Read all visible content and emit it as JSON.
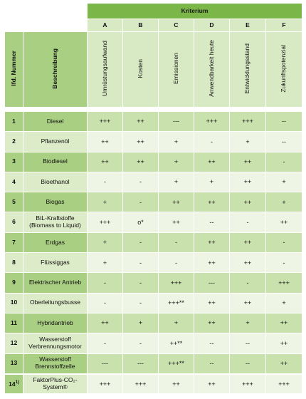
{
  "header": {
    "group_label": "Kriterium",
    "columns": [
      {
        "letter": "A",
        "label": "Umrüstungsaufwand"
      },
      {
        "letter": "B",
        "label": "Kosten"
      },
      {
        "letter": "C",
        "label": "Emissionen"
      },
      {
        "letter": "D",
        "label": "Anwendbarkeit heute"
      },
      {
        "letter": "E",
        "label": "Entwicklungsstand"
      },
      {
        "letter": "F",
        "label": "Zukunftspotenzial"
      }
    ],
    "num_label": "lfd. Nummer",
    "desc_label": "Beschreibung"
  },
  "rows": [
    {
      "num": "1",
      "desc": "Diesel",
      "values": [
        "+++",
        "++",
        "---",
        "+++",
        "+++",
        "--"
      ]
    },
    {
      "num": "2",
      "desc": "Pflanzenöl",
      "values": [
        "++",
        "++",
        "+",
        "-",
        "+",
        "--"
      ]
    },
    {
      "num": "3",
      "desc": "Biodiesel",
      "values": [
        "++",
        "++",
        "+",
        "++",
        "++",
        "-"
      ]
    },
    {
      "num": "4",
      "desc": "Bioethanol",
      "values": [
        "-",
        "-",
        "+",
        "+",
        "++",
        "+"
      ]
    },
    {
      "num": "5",
      "desc": "Biogas",
      "values": [
        "+",
        "-",
        "++",
        "++",
        "++",
        "+"
      ]
    },
    {
      "num": "6",
      "desc": "BtL-Kraftstoffe\n(Biomass to Liquid)",
      "values": [
        "+++",
        "o*",
        "++",
        "--",
        "-",
        "++"
      ]
    },
    {
      "num": "7",
      "desc": "Erdgas",
      "values": [
        "+",
        "-",
        "-",
        "++",
        "++",
        "-"
      ]
    },
    {
      "num": "8",
      "desc": "Flüssiggas",
      "values": [
        "+",
        "-",
        "-",
        "++",
        "++",
        "-"
      ]
    },
    {
      "num": "9",
      "desc": "Elektrischer Antrieb",
      "values": [
        "-",
        "-",
        "+++",
        "---",
        "-",
        "+++"
      ]
    },
    {
      "num": "10",
      "desc": "Oberleitungsbusse",
      "values": [
        "-",
        "-",
        "+++**",
        "++",
        "++",
        "+"
      ]
    },
    {
      "num": "11",
      "desc": "Hybridantrieb",
      "values": [
        "++",
        "+",
        "+",
        "++",
        "+",
        "++"
      ]
    },
    {
      "num": "12",
      "desc": "Wasserstoff\nVerbrennungsmotor",
      "values": [
        "-",
        "-",
        "++**",
        "--",
        "--",
        "++"
      ]
    },
    {
      "num": "13",
      "desc": "Wasserstoff\nBrennstoffzelle",
      "values": [
        "---",
        "---",
        "+++**",
        "--",
        "--",
        "++"
      ]
    }
  ],
  "extra_row": {
    "num": "14",
    "num_sup": "1)",
    "desc_line1": "FaktorPlus-CO₂-",
    "desc_line2": "System®",
    "values": [
      "+++",
      "+++",
      "++",
      "++",
      "+++",
      "+++"
    ]
  }
}
